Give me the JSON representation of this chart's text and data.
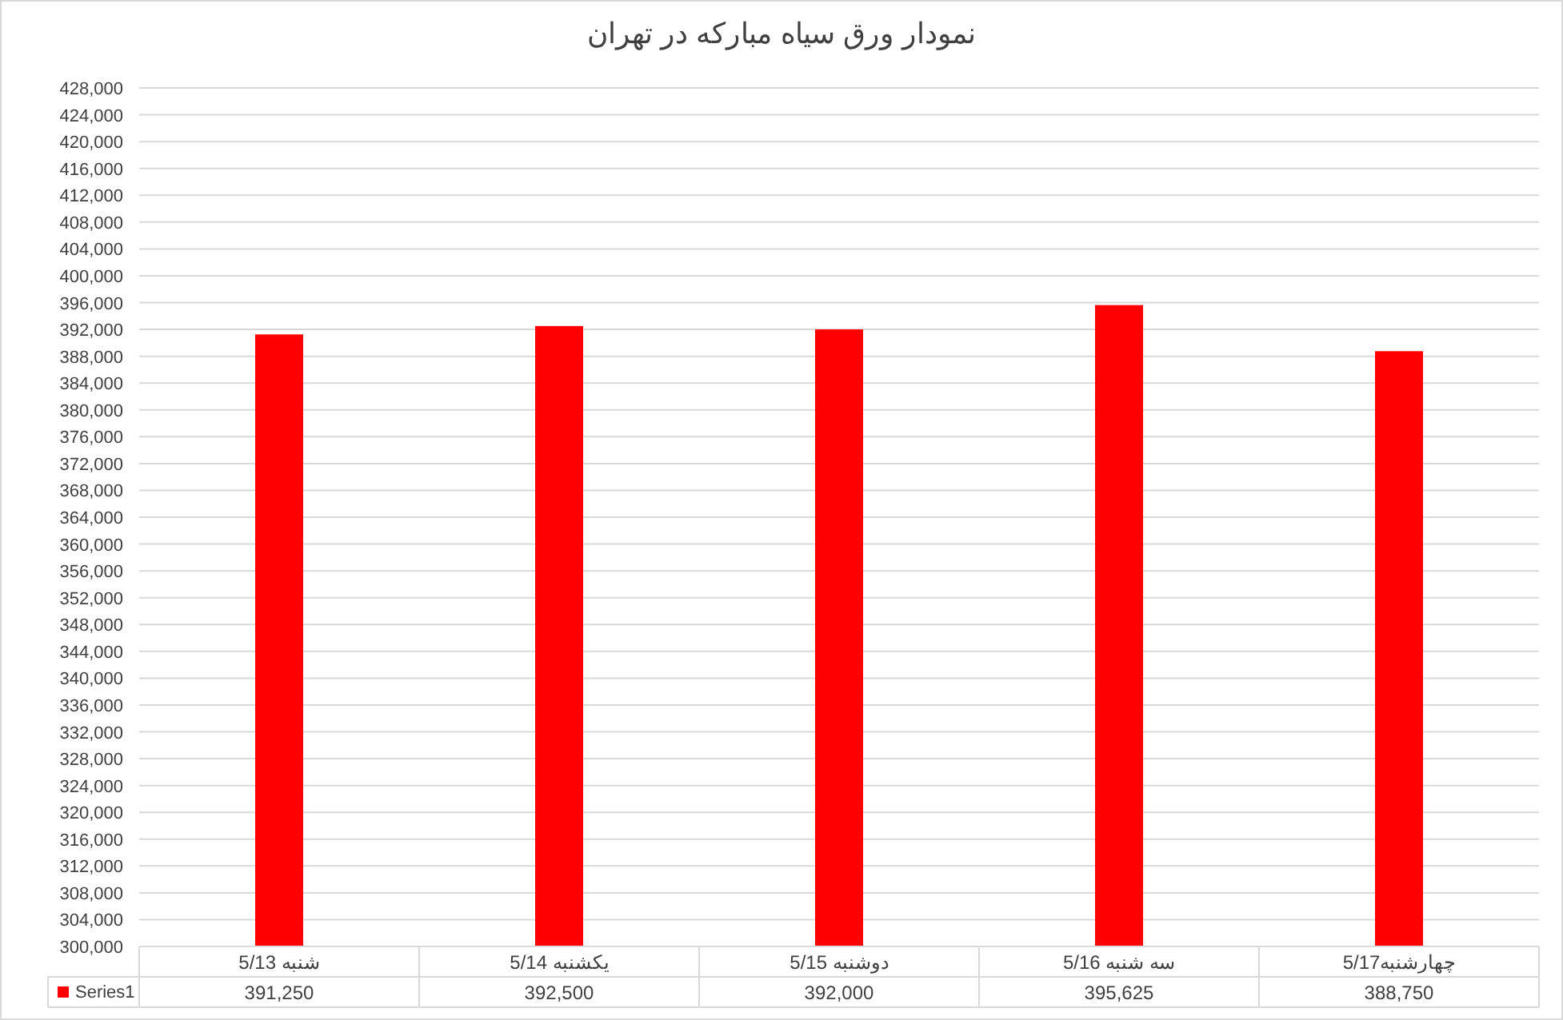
{
  "chart_data": {
    "type": "bar",
    "title": "نمودار ورق سیاه مبارکه در تهران",
    "categories": [
      "شنبه 5/13",
      "یکشنبه 5/14",
      "دوشنبه 5/15",
      "سه شنبه 5/16",
      "چهارشنبه5/17"
    ],
    "series": [
      {
        "name": "Series1",
        "color": "#ff0000",
        "values": [
          391250,
          392500,
          392000,
          395625,
          388750
        ],
        "value_labels": [
          "391,250",
          "392,500",
          "392,000",
          "395,625",
          "388,750"
        ]
      }
    ],
    "ylim": [
      300000,
      428000
    ],
    "yticks": [
      {
        "value": 300000,
        "label": "300,000"
      },
      {
        "value": 304000,
        "label": "304,000"
      },
      {
        "value": 308000,
        "label": "308,000"
      },
      {
        "value": 312000,
        "label": "312,000"
      },
      {
        "value": 316000,
        "label": "316,000"
      },
      {
        "value": 320000,
        "label": "320,000"
      },
      {
        "value": 324000,
        "label": "324,000"
      },
      {
        "value": 328000,
        "label": "328,000"
      },
      {
        "value": 332000,
        "label": "332,000"
      },
      {
        "value": 336000,
        "label": "336,000"
      },
      {
        "value": 340000,
        "label": "340,000"
      },
      {
        "value": 344000,
        "label": "344,000"
      },
      {
        "value": 348000,
        "label": "348,000"
      },
      {
        "value": 352000,
        "label": "352,000"
      },
      {
        "value": 356000,
        "label": "356,000"
      },
      {
        "value": 360000,
        "label": "360,000"
      },
      {
        "value": 364000,
        "label": "364,000"
      },
      {
        "value": 368000,
        "label": "368,000"
      },
      {
        "value": 372000,
        "label": "372,000"
      },
      {
        "value": 376000,
        "label": "376,000"
      },
      {
        "value": 380000,
        "label": "380,000"
      },
      {
        "value": 384000,
        "label": "384,000"
      },
      {
        "value": 388000,
        "label": "388,000"
      },
      {
        "value": 392000,
        "label": "392,000"
      },
      {
        "value": 396000,
        "label": "396,000"
      },
      {
        "value": 400000,
        "label": "400,000"
      },
      {
        "value": 404000,
        "label": "404,000"
      },
      {
        "value": 408000,
        "label": "408,000"
      },
      {
        "value": 412000,
        "label": "412,000"
      },
      {
        "value": 416000,
        "label": "416,000"
      },
      {
        "value": 420000,
        "label": "420,000"
      },
      {
        "value": 424000,
        "label": "424,000"
      },
      {
        "value": 428000,
        "label": "428,000"
      }
    ],
    "grid": "y",
    "legend": "bottom"
  }
}
